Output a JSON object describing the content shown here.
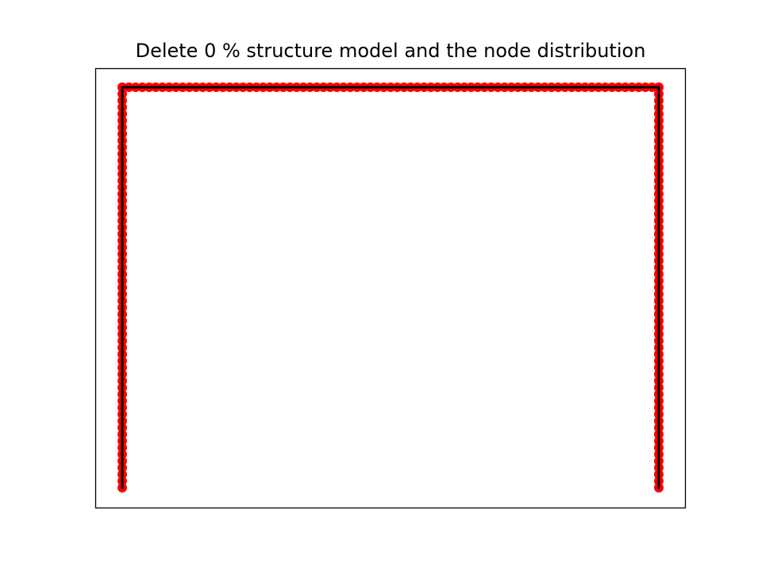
{
  "figure": {
    "title": "Delete 0 % structure model and the node distribution"
  },
  "colors": {
    "nodes": "#ff0000",
    "members": "#000000",
    "frame": "#000000",
    "background": "#ffffff"
  },
  "structure": {
    "type": "portal frame",
    "delete_percent": 0,
    "grid": {
      "x": [
        0,
        20
      ],
      "y": [
        0,
        15
      ]
    },
    "support_left": [
      0,
      0
    ],
    "support_right": [
      20,
      0
    ],
    "members": [
      {
        "name": "left-column",
        "from": [
          0,
          0
        ],
        "to": [
          0,
          15
        ]
      },
      {
        "name": "beam",
        "from": [
          0,
          15
        ],
        "to": [
          20,
          15
        ]
      },
      {
        "name": "right-column",
        "from": [
          20,
          15
        ],
        "to": [
          20,
          0
        ]
      }
    ],
    "nodes_per_unit": 4
  }
}
